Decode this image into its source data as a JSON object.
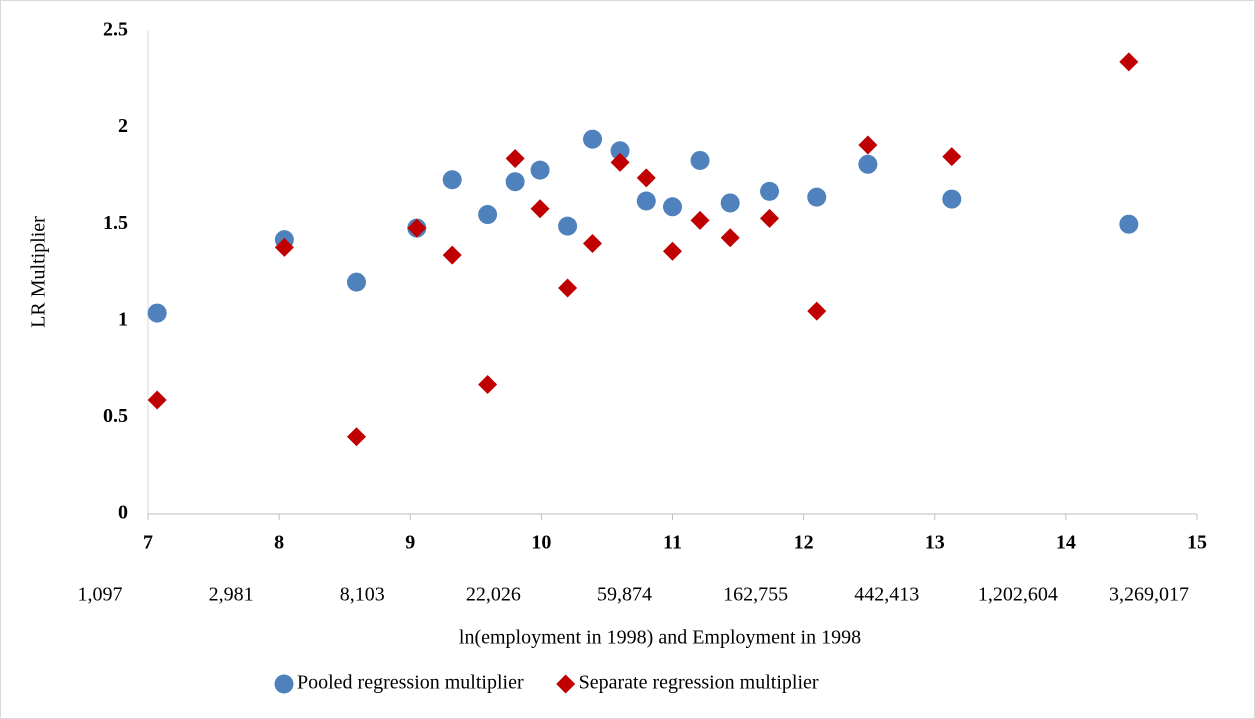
{
  "chart_data": {
    "type": "scatter",
    "x_label": "ln(employment in 1998) and Employment in 1998",
    "y_label": "LR Multiplier",
    "xlim": [
      7,
      15
    ],
    "xticks": [
      7,
      8,
      9,
      10,
      11,
      12,
      13,
      14,
      15
    ],
    "ylim": [
      0,
      2.5
    ],
    "yticks": [
      0,
      0.5,
      1,
      1.5,
      2,
      2.5
    ],
    "x2_log": true,
    "x2ticks": [
      {
        "value": 1097,
        "label": "1,097"
      },
      {
        "value": 2981,
        "label": "2,981"
      },
      {
        "value": 8103,
        "label": "8,103"
      },
      {
        "value": 22026,
        "label": "22,026"
      },
      {
        "value": 59874,
        "label": "59,874"
      },
      {
        "value": 162755,
        "label": "162,755"
      },
      {
        "value": 442413,
        "label": "442,413"
      },
      {
        "value": 1202604,
        "label": "1,202,604"
      },
      {
        "value": 3269017,
        "label": "3,269,017"
      }
    ],
    "grid": false,
    "legend": "bottom",
    "series": [
      {
        "name": "Pooled regression multiplier",
        "color": "#4f81bd",
        "marker": "circle",
        "x": [
          7.07,
          8.04,
          8.59,
          9.05,
          9.32,
          9.59,
          9.8,
          9.99,
          10.2,
          10.39,
          10.6,
          10.8,
          11.0,
          11.21,
          11.44,
          11.74,
          12.1,
          12.49,
          13.13,
          14.48
        ],
        "values": [
          1.04,
          1.42,
          1.2,
          1.48,
          1.73,
          1.55,
          1.72,
          1.78,
          1.49,
          1.94,
          1.88,
          1.62,
          1.59,
          1.83,
          1.61,
          1.67,
          1.64,
          1.81,
          1.63,
          1.5
        ]
      },
      {
        "name": "Separate regression multiplier",
        "color": "#c00000",
        "marker": "diamond",
        "x": [
          7.07,
          8.04,
          8.59,
          9.05,
          9.32,
          9.59,
          9.8,
          9.99,
          10.2,
          10.39,
          10.6,
          10.8,
          11.0,
          11.21,
          11.44,
          11.74,
          12.1,
          12.49,
          13.13,
          14.48
        ],
        "values": [
          0.59,
          1.38,
          0.4,
          1.48,
          1.34,
          0.67,
          1.84,
          1.58,
          1.17,
          1.4,
          1.82,
          1.74,
          1.36,
          1.52,
          1.43,
          1.53,
          1.05,
          1.91,
          1.85,
          2.34
        ]
      }
    ]
  }
}
